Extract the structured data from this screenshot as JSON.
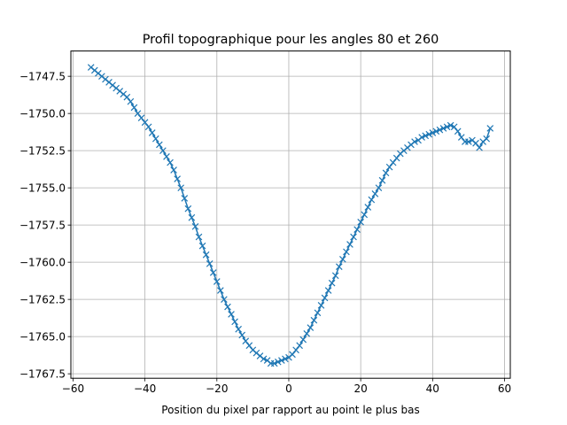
{
  "chart_data": {
    "type": "line",
    "title": "Profil topographique pour les angles 80 et 260",
    "xlabel": "Position du pixel par rapport au point le plus bas",
    "ylabel": "",
    "xlim": [
      -60.6,
      61.6
    ],
    "ylim": [
      -1767.8,
      -1745.8
    ],
    "grid": true,
    "marker": "x",
    "color": "#1f77b4",
    "x_ticks": [
      -60,
      -40,
      -20,
      0,
      20,
      40,
      60
    ],
    "x_tick_labels": [
      "−60",
      "−40",
      "−20",
      "0",
      "20",
      "40",
      "60"
    ],
    "y_ticks": [
      -1747.5,
      -1750.0,
      -1752.5,
      -1755.0,
      -1757.5,
      -1760.0,
      -1762.5,
      -1765.0,
      -1767.5
    ],
    "y_tick_labels": [
      "−1747.5",
      "−1750.0",
      "−1752.5",
      "−1755.0",
      "−1757.5",
      "−1760.0",
      "−1762.5",
      "−1765.0",
      "−1767.5"
    ],
    "series": [
      {
        "x": [
          -55,
          -54,
          -53,
          -52,
          -51,
          -50,
          -49,
          -48,
          -47,
          -46,
          -45,
          -44,
          -43,
          -42,
          -41,
          -40,
          -39,
          -38,
          -37,
          -36,
          -35,
          -34,
          -33,
          -32,
          -31,
          -30,
          -29,
          -28,
          -27,
          -26,
          -25,
          -24,
          -23,
          -22,
          -21,
          -20,
          -19,
          -18,
          -17,
          -16,
          -15,
          -14,
          -13,
          -12,
          -11,
          -10,
          -9,
          -8,
          -7,
          -6,
          -5,
          -4,
          -3,
          -2,
          -1,
          0,
          1,
          2,
          3,
          4,
          5,
          6,
          7,
          8,
          9,
          10,
          11,
          12,
          13,
          14,
          15,
          16,
          17,
          18,
          19,
          20,
          21,
          22,
          23,
          24,
          25,
          26,
          27,
          28,
          29,
          30,
          31,
          32,
          33,
          34,
          35,
          36,
          37,
          38,
          39,
          40,
          41,
          42,
          43,
          44,
          45,
          46,
          47,
          48,
          49,
          50,
          51,
          52,
          53,
          54,
          55,
          56
        ],
        "y": [
          -1746.9,
          -1747.1,
          -1747.3,
          -1747.5,
          -1747.7,
          -1747.9,
          -1748.1,
          -1748.3,
          -1748.5,
          -1748.7,
          -1748.9,
          -1749.2,
          -1749.6,
          -1750.0,
          -1750.3,
          -1750.6,
          -1750.9,
          -1751.3,
          -1751.7,
          -1752.1,
          -1752.5,
          -1752.9,
          -1753.3,
          -1753.8,
          -1754.4,
          -1755.0,
          -1755.7,
          -1756.4,
          -1757.0,
          -1757.6,
          -1758.3,
          -1758.9,
          -1759.5,
          -1760.1,
          -1760.7,
          -1761.3,
          -1761.9,
          -1762.5,
          -1763.0,
          -1763.5,
          -1764.0,
          -1764.5,
          -1764.9,
          -1765.3,
          -1765.6,
          -1765.9,
          -1766.1,
          -1766.3,
          -1766.5,
          -1766.6,
          -1766.8,
          -1766.8,
          -1766.7,
          -1766.6,
          -1766.5,
          -1766.4,
          -1766.2,
          -1765.9,
          -1765.6,
          -1765.2,
          -1764.8,
          -1764.4,
          -1763.9,
          -1763.4,
          -1762.9,
          -1762.4,
          -1761.9,
          -1761.4,
          -1760.9,
          -1760.3,
          -1759.8,
          -1759.3,
          -1758.8,
          -1758.3,
          -1757.8,
          -1757.3,
          -1756.8,
          -1756.3,
          -1755.8,
          -1755.4,
          -1755.0,
          -1754.5,
          -1754.0,
          -1753.6,
          -1753.3,
          -1753.0,
          -1752.7,
          -1752.5,
          -1752.3,
          -1752.1,
          -1751.9,
          -1751.8,
          -1751.6,
          -1751.5,
          -1751.4,
          -1751.3,
          -1751.2,
          -1751.1,
          -1751.0,
          -1750.9,
          -1750.8,
          -1750.9,
          -1751.2,
          -1751.6,
          -1751.9,
          -1751.9,
          -1751.8,
          -1752.0,
          -1752.3,
          -1751.9,
          -1751.7,
          -1751.0
        ]
      }
    ]
  }
}
